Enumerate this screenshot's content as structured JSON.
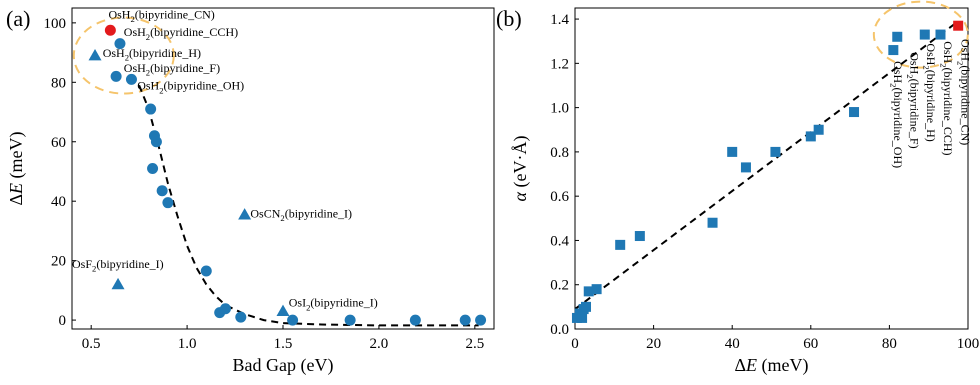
{
  "colors": {
    "marker": "#1f78b4",
    "highlight": "#e31a1c",
    "highlight_circle": "#f5c46b",
    "fit_line": "#000000"
  },
  "chart_data": [
    {
      "panel": "(a)",
      "type": "scatter",
      "xlabel": "Bad Gap (eV)",
      "ylabel": "ΔE (meV)",
      "xlim": [
        0.4,
        2.6
      ],
      "ylim": [
        -3,
        105
      ],
      "xticks": [
        0.5,
        1.0,
        1.5,
        2.0,
        2.5
      ],
      "xtick_labels": [
        "0.5",
        "1.0",
        "1.5",
        "2.0",
        "2.5"
      ],
      "yticks": [
        0,
        20,
        40,
        60,
        80,
        100
      ],
      "ytick_labels": [
        "0",
        "20",
        "40",
        "60",
        "80",
        "100"
      ],
      "grid": false,
      "series": [
        {
          "marker": "circle",
          "points": [
            {
              "x": 0.65,
              "y": 93
            },
            {
              "x": 0.63,
              "y": 82
            },
            {
              "x": 0.71,
              "y": 81
            },
            {
              "x": 0.81,
              "y": 71
            },
            {
              "x": 0.83,
              "y": 62
            },
            {
              "x": 0.84,
              "y": 60
            },
            {
              "x": 0.82,
              "y": 51
            },
            {
              "x": 0.87,
              "y": 43.5
            },
            {
              "x": 0.9,
              "y": 39.5
            },
            {
              "x": 1.1,
              "y": 16.5
            },
            {
              "x": 1.17,
              "y": 2.5
            },
            {
              "x": 1.2,
              "y": 3.8
            },
            {
              "x": 1.28,
              "y": 1
            },
            {
              "x": 1.55,
              "y": 0
            },
            {
              "x": 1.85,
              "y": 0
            },
            {
              "x": 2.19,
              "y": 0
            },
            {
              "x": 2.45,
              "y": 0
            },
            {
              "x": 2.53,
              "y": 0
            }
          ]
        },
        {
          "marker": "circle-red",
          "points": [
            {
              "x": 0.6,
              "y": 97.5
            }
          ]
        },
        {
          "marker": "triangle",
          "points": [
            {
              "x": 0.52,
              "y": 89
            },
            {
              "x": 0.64,
              "y": 12
            },
            {
              "x": 1.3,
              "y": 35.5
            },
            {
              "x": 1.5,
              "y": 3
            }
          ]
        }
      ],
      "fit_curve": [
        {
          "x": 0.75,
          "y": 79
        },
        {
          "x": 0.8,
          "y": 71
        },
        {
          "x": 0.85,
          "y": 59
        },
        {
          "x": 0.9,
          "y": 46
        },
        {
          "x": 0.95,
          "y": 35
        },
        {
          "x": 1.0,
          "y": 25
        },
        {
          "x": 1.05,
          "y": 17.5
        },
        {
          "x": 1.1,
          "y": 12
        },
        {
          "x": 1.15,
          "y": 8
        },
        {
          "x": 1.2,
          "y": 5
        },
        {
          "x": 1.3,
          "y": 2
        },
        {
          "x": 1.4,
          "y": 0
        },
        {
          "x": 1.5,
          "y": -1
        },
        {
          "x": 1.7,
          "y": -1.5
        },
        {
          "x": 2.0,
          "y": -1.8
        },
        {
          "x": 2.3,
          "y": -1.8
        },
        {
          "x": 2.52,
          "y": -1.8
        }
      ],
      "annotations": [
        {
          "base": "OsH",
          "sub": "2",
          "rest": "(bipyridine_CN)",
          "x": 0.59,
          "y": 101.5
        },
        {
          "base": "OsH",
          "sub": "2",
          "rest": "(bipyridine_CCH)",
          "x": 0.67,
          "y": 95.5
        },
        {
          "base": "OsH",
          "sub": "2",
          "rest": "(bipyridine_H)",
          "x": 0.56,
          "y": 88.5
        },
        {
          "base": "OsH",
          "sub": "2",
          "rest": "(bipyridine_F)",
          "x": 0.67,
          "y": 83.5
        },
        {
          "base": "OsH",
          "sub": "2",
          "rest": "(bipyridine_OH)",
          "x": 0.74,
          "y": 77.5
        },
        {
          "base": "OsCN",
          "sub": "2",
          "rest": "(bipyridine_I)",
          "x": 1.33,
          "y": 34.5
        },
        {
          "base": "OsF",
          "sub": "2",
          "rest": "(bipyridine_I)",
          "x": 0.4,
          "y": 17.5
        },
        {
          "base": "OsI",
          "sub": "2",
          "rest": "(bipyridine_I)",
          "x": 1.53,
          "y": 4.5
        }
      ]
    },
    {
      "panel": "(b)",
      "type": "scatter",
      "xlabel": "ΔE (meV)",
      "ylabel": "α (eV·Å)",
      "xlim": [
        0,
        100
      ],
      "ylim": [
        0,
        1.45
      ],
      "xticks": [
        0,
        20,
        40,
        60,
        80,
        100
      ],
      "xtick_labels": [
        "0",
        "20",
        "40",
        "60",
        "80",
        "100"
      ],
      "yticks": [
        0,
        0.2,
        0.4,
        0.6,
        0.8,
        1.0,
        1.2,
        1.4
      ],
      "ytick_labels": [
        "0.0",
        "0.2",
        "0.4",
        "0.6",
        "0.8",
        "1.0",
        "1.2",
        "1.4"
      ],
      "grid": false,
      "series": [
        {
          "marker": "square",
          "points": [
            {
              "x": 0.5,
              "y": 0.05
            },
            {
              "x": 1.2,
              "y": 0.07
            },
            {
              "x": 1.8,
              "y": 0.05
            },
            {
              "x": 2.2,
              "y": 0.09
            },
            {
              "x": 2.8,
              "y": 0.1
            },
            {
              "x": 3.5,
              "y": 0.17
            },
            {
              "x": 5.5,
              "y": 0.18
            },
            {
              "x": 11.5,
              "y": 0.38
            },
            {
              "x": 16.5,
              "y": 0.42
            },
            {
              "x": 35,
              "y": 0.48
            },
            {
              "x": 40,
              "y": 0.8
            },
            {
              "x": 43.5,
              "y": 0.73
            },
            {
              "x": 51,
              "y": 0.8
            },
            {
              "x": 60,
              "y": 0.87
            },
            {
              "x": 62,
              "y": 0.9
            },
            {
              "x": 71,
              "y": 0.98
            },
            {
              "x": 81,
              "y": 1.26
            },
            {
              "x": 82,
              "y": 1.32
            },
            {
              "x": 89,
              "y": 1.33
            },
            {
              "x": 93,
              "y": 1.33
            }
          ]
        },
        {
          "marker": "square-red",
          "points": [
            {
              "x": 97.5,
              "y": 1.37
            }
          ]
        }
      ],
      "fit_line": [
        {
          "x": 0,
          "y": 0.09
        },
        {
          "x": 97.5,
          "y": 1.39
        }
      ],
      "annotations": [
        {
          "base": "OsH",
          "sub": "2",
          "rest": "(bipyridine_CN)",
          "x": 98.3,
          "y": 1.31
        },
        {
          "base": "OsH",
          "sub": "2",
          "rest": "(bipyridine_CCH)",
          "x": 93.9,
          "y": 1.3
        },
        {
          "base": "OsH",
          "sub": "2",
          "rest": "(bipyridine_H)",
          "x": 89.6,
          "y": 1.29
        },
        {
          "base": "OsH",
          "sub": "2",
          "rest": "(bipyridine_F)",
          "x": 85.4,
          "y": 1.25
        },
        {
          "base": "OsH",
          "sub": "2",
          "rest": "(bipyridine_OH)",
          "x": 81.2,
          "y": 1.21
        }
      ]
    }
  ]
}
